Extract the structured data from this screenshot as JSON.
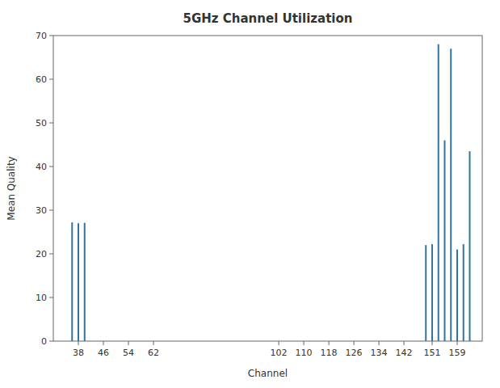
{
  "chart_data": {
    "type": "bar",
    "title": "5GHz Channel Utilization",
    "xlabel": "Channel",
    "ylabel": "Mean Quality",
    "x": [
      36,
      38,
      40,
      149,
      151,
      153,
      155,
      157,
      159,
      161,
      163
    ],
    "values": [
      27.2,
      27.0,
      27.1,
      22.0,
      22.2,
      68.0,
      46.0,
      67.0,
      21.0,
      22.2,
      43.5
    ],
    "color": "#3274a1",
    "xlim": [
      30,
      167
    ],
    "ylim": [
      0,
      70
    ],
    "xticks": [
      38,
      46,
      54,
      62,
      102,
      110,
      118,
      126,
      134,
      142,
      151,
      159
    ],
    "yticks": [
      0,
      10,
      20,
      30,
      40,
      50,
      60,
      70
    ],
    "grid": false
  }
}
